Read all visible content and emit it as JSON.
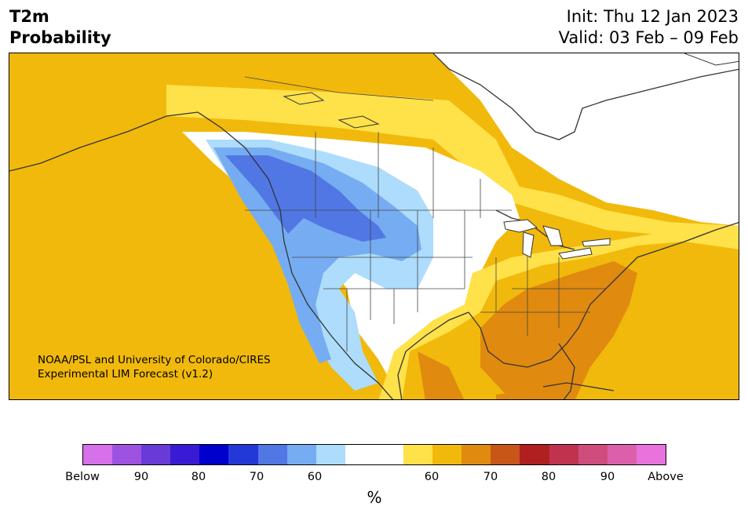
{
  "header": {
    "variable": "T2m",
    "subtitle": "Probability",
    "init": "Init: Thu 12 Jan 2023",
    "valid": "Valid: 03 Feb – 09 Feb"
  },
  "credit": {
    "line1": "NOAA/PSL and University of Colorado/CIRES",
    "line2": "Experimental LIM Forecast (v1.2)"
  },
  "colorbar": {
    "colors": [
      "#d670eb",
      "#9d53e0",
      "#6a3ad8",
      "#3a1bd4",
      "#0000cd",
      "#2438d8",
      "#5177e5",
      "#76acf1",
      "#addcfc",
      "#ffffff",
      "#ffffff",
      "#ffe14a",
      "#f1b90b",
      "#e08a10",
      "#c85619",
      "#b02020",
      "#c0334f",
      "#cf4d7d",
      "#dc5fab",
      "#e873dc"
    ],
    "tick_labels": [
      "Below",
      "90",
      "80",
      "70",
      "60",
      "60",
      "70",
      "80",
      "90",
      "Above"
    ],
    "unit": "%"
  },
  "legend_colors": {
    "below_light": "#addcfc",
    "below_mid": "#76acf1",
    "below_strong": "#5177e5",
    "above_light": "#ffe14a",
    "above_mid": "#f1b90b",
    "above_strong": "#e08a10"
  }
}
